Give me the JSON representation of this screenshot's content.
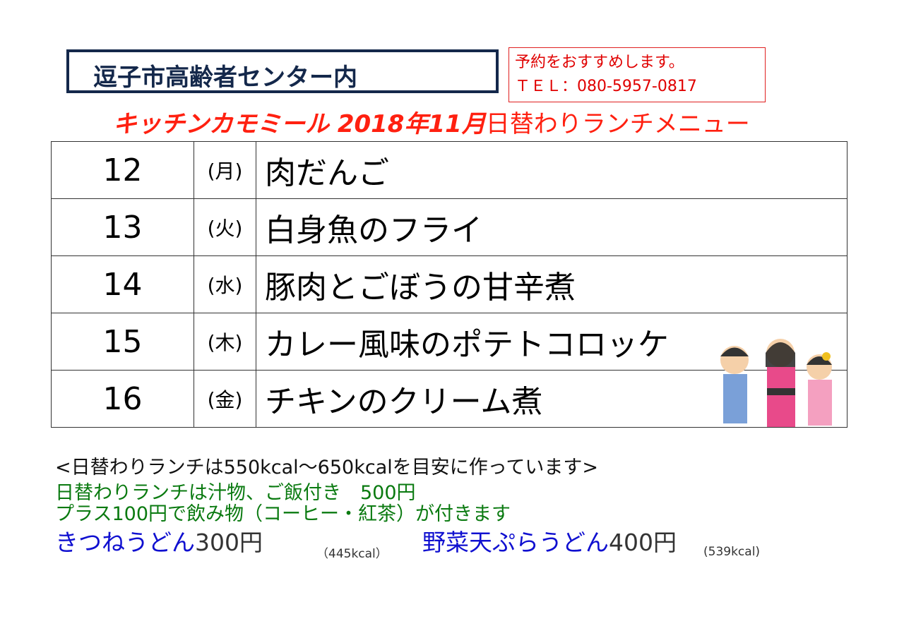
{
  "header": {
    "location": "逗子市高齢者センター内",
    "reservation": "予約をおすすめします。",
    "tel": "ＴＥＬ：080-5957-0817"
  },
  "title": {
    "shop": "キッチンカモミール 2018年11月",
    "menu": "日替わりランチメニュー"
  },
  "menu": [
    {
      "day": "12",
      "weekday": "(月)",
      "dish": "肉だんご"
    },
    {
      "day": "13",
      "weekday": "(火)",
      "dish": "白身魚のフライ"
    },
    {
      "day": "14",
      "weekday": "(水)",
      "dish": "豚肉とごぼうの甘辛煮"
    },
    {
      "day": "15",
      "weekday": "(木)",
      "dish": "カレー風味のポテトコロッケ"
    },
    {
      "day": "16",
      "weekday": "(金)",
      "dish": "チキンのクリーム煮"
    }
  ],
  "notes": {
    "calorie": "<日替わりランチは550kcal～650kcalを目安に作っています>",
    "line1": "日替わりランチは汁物、ご飯付き　500円",
    "line2": "プラス100円で飲み物（コーヒー・紅茶）が付きます"
  },
  "udon": [
    {
      "name": "きつねうどん",
      "price": "300円",
      "kcal": "（445kcal）"
    },
    {
      "name": "野菜天ぷらうどん",
      "price": "400円",
      "kcal": "(539kcal)"
    }
  ],
  "colors": {
    "navy": "#14284b",
    "red": "#ff2010",
    "green": "#0a7a10",
    "blue": "#1010d0"
  },
  "illustration": "children-in-kimono"
}
